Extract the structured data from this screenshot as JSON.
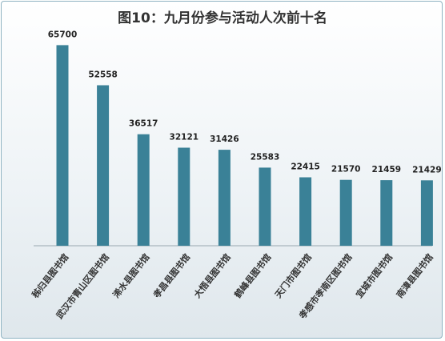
{
  "chart_data": {
    "type": "bar",
    "title": "图10：九月份参与活动人次前十名",
    "categories": [
      "秭归县图书馆",
      "武汉市青山区图书馆",
      "浠水县图书馆",
      "孝昌县图书馆",
      "大悟县图书馆",
      "鹤峰县图书馆",
      "天门市图书馆",
      "孝感市孝南区图书馆",
      "宜城市图书馆",
      "南漳县图书馆"
    ],
    "values": [
      65700,
      52558,
      36517,
      32121,
      31426,
      25583,
      22415,
      21570,
      21459,
      21429
    ],
    "ylim": [
      0,
      70000
    ],
    "grid": false,
    "legend": "none",
    "bar_color": "#3a8197"
  }
}
